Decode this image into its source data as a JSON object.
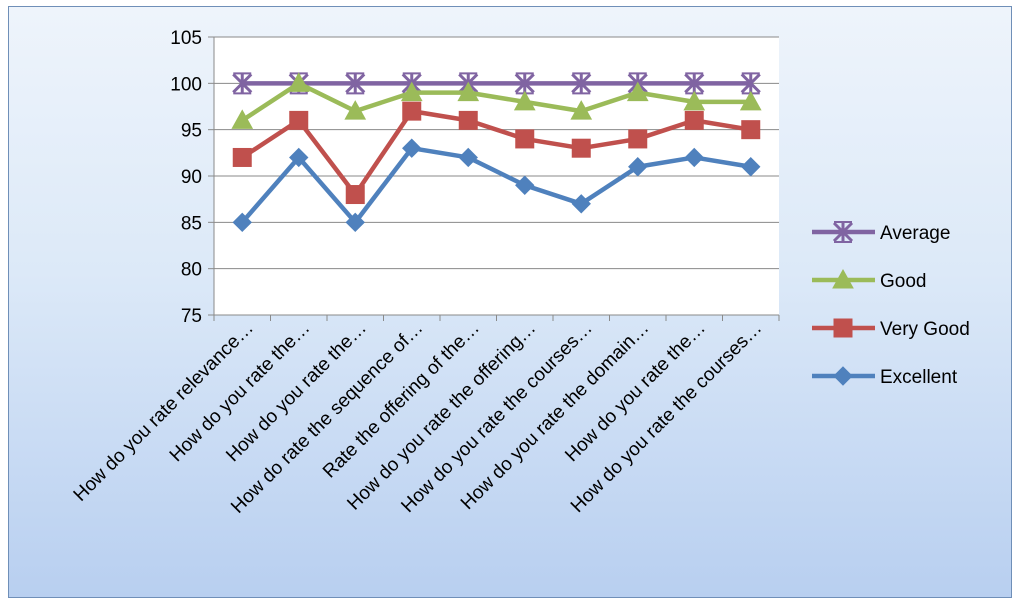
{
  "chart_data": {
    "type": "line",
    "title": "",
    "xlabel": "",
    "ylabel": "",
    "ylim": [
      75,
      105
    ],
    "yticks": [
      75,
      80,
      85,
      90,
      95,
      100,
      105
    ],
    "grid": true,
    "legend_position": "right",
    "categories": [
      "How do you rate relevance…",
      "How do you rate the…",
      "How do you rate the…",
      "How do rate the sequence of…",
      "Rate the offering of the…",
      "How do you rate the offering…",
      "How do you rate the courses…",
      "How do you rate the domain…",
      "How do you rate the…",
      "How do you rate the courses…"
    ],
    "series": [
      {
        "name": "Average",
        "color": "#8064a2",
        "marker": "star",
        "values": [
          100,
          100,
          100,
          100,
          100,
          100,
          100,
          100,
          100,
          100
        ]
      },
      {
        "name": "Good",
        "color": "#9bbb59",
        "marker": "triangle",
        "values": [
          96,
          100,
          97,
          99,
          99,
          98,
          97,
          99,
          98,
          98
        ]
      },
      {
        "name": "Very Good",
        "color": "#c0504d",
        "marker": "square",
        "values": [
          92,
          96,
          88,
          97,
          96,
          94,
          93,
          94,
          96,
          95
        ]
      },
      {
        "name": "Excellent",
        "color": "#4f81bd",
        "marker": "diamond",
        "values": [
          85,
          92,
          85,
          93,
          92,
          89,
          87,
          91,
          92,
          91
        ]
      }
    ]
  }
}
